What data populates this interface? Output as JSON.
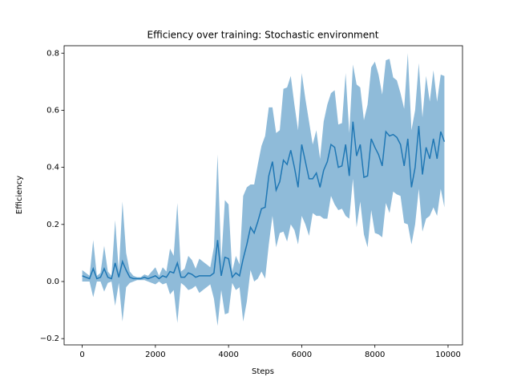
{
  "chart_data": {
    "type": "line",
    "title": "Efficiency over training: Stochastic environment",
    "x_label": "Steps",
    "y_label": "Efficiency",
    "x": [
      0,
      100,
      200,
      300,
      400,
      500,
      600,
      700,
      800,
      900,
      1000,
      1100,
      1200,
      1300,
      1400,
      1500,
      1600,
      1700,
      1800,
      1900,
      2000,
      2100,
      2200,
      2300,
      2400,
      2500,
      2600,
      2700,
      2800,
      2900,
      3000,
      3100,
      3200,
      3300,
      3400,
      3500,
      3600,
      3700,
      3800,
      3900,
      4000,
      4100,
      4200,
      4300,
      4400,
      4500,
      4600,
      4700,
      4800,
      4900,
      5000,
      5100,
      5200,
      5300,
      5400,
      5500,
      5600,
      5700,
      5800,
      5900,
      6000,
      6100,
      6200,
      6300,
      6400,
      6500,
      6600,
      6700,
      6800,
      6900,
      7000,
      7100,
      7200,
      7300,
      7400,
      7500,
      7600,
      7700,
      7800,
      7900,
      8000,
      8100,
      8200,
      8300,
      8400,
      8500,
      8600,
      8700,
      8800,
      8900,
      9000,
      9100,
      9200,
      9300,
      9400,
      9500,
      9600,
      9700,
      9800,
      9900
    ],
    "series": [
      {
        "color": "#1f77b4",
        "values": [
          0.02,
          0.015,
          0.01,
          0.045,
          0.01,
          0.015,
          0.045,
          0.015,
          0.01,
          0.065,
          0.015,
          0.07,
          0.04,
          0.015,
          0.01,
          0.01,
          0.01,
          0.015,
          0.01,
          0.015,
          0.02,
          0.01,
          0.02,
          0.015,
          0.035,
          0.03,
          0.065,
          0.015,
          0.015,
          0.03,
          0.025,
          0.015,
          0.02,
          0.02,
          0.02,
          0.02,
          0.03,
          0.145,
          0.02,
          0.085,
          0.08,
          0.015,
          0.03,
          0.02,
          0.08,
          0.13,
          0.19,
          0.17,
          0.21,
          0.255,
          0.26,
          0.37,
          0.42,
          0.32,
          0.35,
          0.425,
          0.41,
          0.46,
          0.4,
          0.33,
          0.48,
          0.42,
          0.36,
          0.36,
          0.38,
          0.33,
          0.39,
          0.42,
          0.48,
          0.47,
          0.4,
          0.405,
          0.48,
          0.37,
          0.56,
          0.44,
          0.48,
          0.365,
          0.37,
          0.5,
          0.47,
          0.445,
          0.405,
          0.525,
          0.51,
          0.515,
          0.505,
          0.48,
          0.405,
          0.5,
          0.33,
          0.4,
          0.545,
          0.375,
          0.47,
          0.43,
          0.5,
          0.43,
          0.525,
          0.49
        ],
        "errors": [
          0.02,
          0.015,
          0.01,
          0.1,
          0.01,
          0.015,
          0.08,
          0.02,
          0.01,
          0.15,
          0.02,
          0.21,
          0.06,
          0.02,
          0.01,
          0.005,
          0.005,
          0.01,
          0.01,
          0.02,
          0.03,
          0.01,
          0.03,
          0.02,
          0.08,
          0.06,
          0.21,
          0.02,
          0.03,
          0.06,
          0.05,
          0.03,
          0.06,
          0.05,
          0.04,
          0.03,
          0.09,
          0.3,
          0.05,
          0.2,
          0.19,
          0.02,
          0.06,
          0.04,
          0.22,
          0.2,
          0.15,
          0.17,
          0.2,
          0.22,
          0.25,
          0.24,
          0.19,
          0.2,
          0.18,
          0.25,
          0.27,
          0.26,
          0.22,
          0.2,
          0.25,
          0.22,
          0.2,
          0.12,
          0.15,
          0.1,
          0.17,
          0.2,
          0.18,
          0.2,
          0.15,
          0.15,
          0.25,
          0.15,
          0.2,
          0.25,
          0.2,
          0.2,
          0.25,
          0.25,
          0.3,
          0.28,
          0.25,
          0.25,
          0.27,
          0.2,
          0.2,
          0.18,
          0.2,
          0.3,
          0.2,
          0.2,
          0.22,
          0.2,
          0.25,
          0.2,
          0.24,
          0.2,
          0.2,
          0.23
        ]
      }
    ],
    "xlim": [
      -495,
      10395
    ],
    "ylim": [
      -0.222,
      0.826
    ],
    "xticks": [
      0,
      2000,
      4000,
      6000,
      8000,
      10000
    ],
    "yticks": [
      {
        "value": -0.2,
        "label": "−0.2"
      },
      {
        "value": 0.0,
        "label": "0.0"
      },
      {
        "value": 0.2,
        "label": "0.2"
      },
      {
        "value": 0.4,
        "label": "0.4"
      },
      {
        "value": 0.6,
        "label": "0.6"
      },
      {
        "value": 0.8,
        "label": "0.8"
      }
    ]
  }
}
